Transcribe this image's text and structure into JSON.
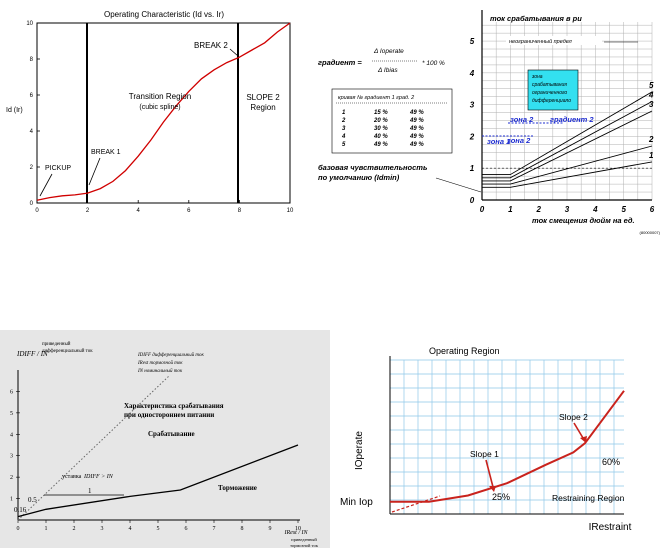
{
  "chart_data": [
    {
      "type": "line",
      "title": "Operating Characteristic (Id vs. Ir)",
      "xlabel": "",
      "ylabel": "Id (Ir)",
      "xlim": [
        0,
        10
      ],
      "ylim": [
        0,
        10
      ],
      "x_ticks": [
        "0",
        "2",
        "4",
        "6",
        "8",
        "10"
      ],
      "y_ticks": [
        "0",
        "2",
        "4",
        "6",
        "8",
        "10"
      ],
      "grid": false,
      "series": [
        {
          "points": [
            [
              0,
              0.15
            ],
            [
              0.5,
              0.3
            ],
            [
              1,
              0.4
            ],
            [
              1.5,
              0.45
            ],
            [
              2,
              0.55
            ],
            [
              2.5,
              0.8
            ],
            [
              3,
              1.2
            ],
            [
              3.5,
              1.8
            ],
            [
              4,
              2.6
            ],
            [
              4.5,
              3.5
            ],
            [
              5,
              4.5
            ],
            [
              5.5,
              5.4
            ],
            [
              6,
              6.2
            ],
            [
              6.5,
              6.9
            ],
            [
              7,
              7.4
            ],
            [
              7.5,
              7.8
            ],
            [
              8,
              8.1
            ],
            [
              8.5,
              8.5
            ],
            [
              9,
              8.9
            ],
            [
              9.5,
              9.5
            ],
            [
              10,
              10
            ]
          ]
        }
      ],
      "vlines": [
        2,
        8
      ],
      "annotations": {
        "region": "Transition Region",
        "region_sub": "(cubic spline)",
        "break2": "BREAK 2",
        "slope2": "SLOPE 2",
        "slope2_sub": "Region",
        "break1": "BREAK 1",
        "pickup": "PICKUP"
      }
    },
    {
      "type": "line",
      "title": "",
      "ylabel": "ток срабатывания в pu",
      "xlabel": "ток смещения дюйм на ед.",
      "xlim": [
        0,
        6
      ],
      "ylim": [
        0,
        5.6
      ],
      "x_ticks": [
        "0",
        "1",
        "2",
        "3",
        "4",
        "5",
        "6"
      ],
      "y_ticks": [
        "0",
        "1",
        "2",
        "3",
        "4",
        "5"
      ],
      "grid": true,
      "series": [
        {
          "name": "1",
          "points": [
            [
              0,
              0.4
            ],
            [
              1,
              0.4
            ],
            [
              6,
              1.2
            ]
          ]
        },
        {
          "name": "2",
          "points": [
            [
              0,
              0.5
            ],
            [
              1,
              0.5
            ],
            [
              6,
              1.7
            ]
          ]
        },
        {
          "name": "3",
          "points": [
            [
              0,
              0.6
            ],
            [
              1,
              0.6
            ],
            [
              6,
              2.8
            ]
          ]
        },
        {
          "name": "4",
          "points": [
            [
              0,
              0.7
            ],
            [
              1,
              0.7
            ],
            [
              6,
              3.1
            ]
          ]
        },
        {
          "name": "5",
          "points": [
            [
              0,
              0.8
            ],
            [
              1,
              0.8
            ],
            [
              6,
              3.4
            ]
          ]
        }
      ],
      "annotations": {
        "unlimited": "неограниченный предел",
        "zone_box": [
          "зона",
          "срабатывания",
          "ограниченного",
          "дифференциало"
        ],
        "zone1": "зона 1",
        "zone2a": "зона 2",
        "zone2b": "зона 2",
        "gradient2": "градиент 2",
        "base_sens": [
          "базовая чувствительность",
          "по умолчанию (Idmin)"
        ],
        "formula_label": "градиент =",
        "formula_num": "Δ Ioperate",
        "formula_den": "Δ Ibias",
        "formula_tail": "* 100 %",
        "table_header": "кривая № градиент 1  град. 2",
        "table_rows": [
          [
            "1",
            "15 %",
            "49 %"
          ],
          [
            "2",
            "20 %",
            "49 %"
          ],
          [
            "3",
            "30 %",
            "49 %"
          ],
          [
            "4",
            "40 %",
            "49 %"
          ],
          [
            "5",
            "49 %",
            "49 %"
          ]
        ],
        "code": "(80000007)"
      }
    },
    {
      "type": "line",
      "title": "",
      "xlabel": "IRest / IN",
      "ylabel": "IDIFF / IN",
      "xlim": [
        0,
        10
      ],
      "ylim": [
        0,
        7
      ],
      "x_ticks": [
        "0",
        "1",
        "2",
        "3",
        "4",
        "5",
        "6",
        "7",
        "8",
        "9",
        "10"
      ],
      "y_ticks": [
        "1",
        "2",
        "3",
        "4",
        "5",
        "6"
      ],
      "grid": false,
      "series": [
        {
          "points": [
            [
              0,
              0.16
            ],
            [
              1,
              0.5
            ],
            [
              4,
              1.1
            ],
            [
              5.8,
              1.4
            ],
            [
              10,
              3.5
            ]
          ]
        }
      ],
      "annotations": {
        "ylabel_desc": [
          "приведенный",
          "дифференциальный ток"
        ],
        "legend_lines": [
          "IDIFF дифференциальный ток",
          "IRest тормозной ток",
          "IN номинальный ток"
        ],
        "char_title": [
          "Характеристика срабатывания",
          "при одностороннем питании"
        ],
        "operate": "Срабатывание",
        "restrain": "Торможение",
        "cond_label": "уставка",
        "cond_expr": "IDIFF > IN",
        "mark_1": "1",
        "mark_05": "0.5",
        "mark_016": "0.16",
        "xlabel_desc": [
          "приведенный",
          "тормозной ток"
        ]
      }
    },
    {
      "type": "line",
      "title": "Operating Region",
      "xlabel": "IRestraint",
      "ylabel": "IOperate",
      "grid": true,
      "series": [
        {
          "points": [
            [
              0,
              0.2
            ],
            [
              1,
              0.2
            ],
            [
              2,
              0.3
            ],
            [
              3,
              0.5
            ],
            [
              4,
              0.8
            ],
            [
              4.7,
              1.0
            ],
            [
              5,
              1.15
            ],
            [
              6,
              2.0
            ]
          ]
        }
      ],
      "annotations": {
        "slope1": "Slope 1",
        "slope2": "Slope 2",
        "pct1": "25%",
        "pct2": "60%",
        "min_iop": "Min Iop",
        "restraining": "Restraining Region"
      }
    }
  ]
}
